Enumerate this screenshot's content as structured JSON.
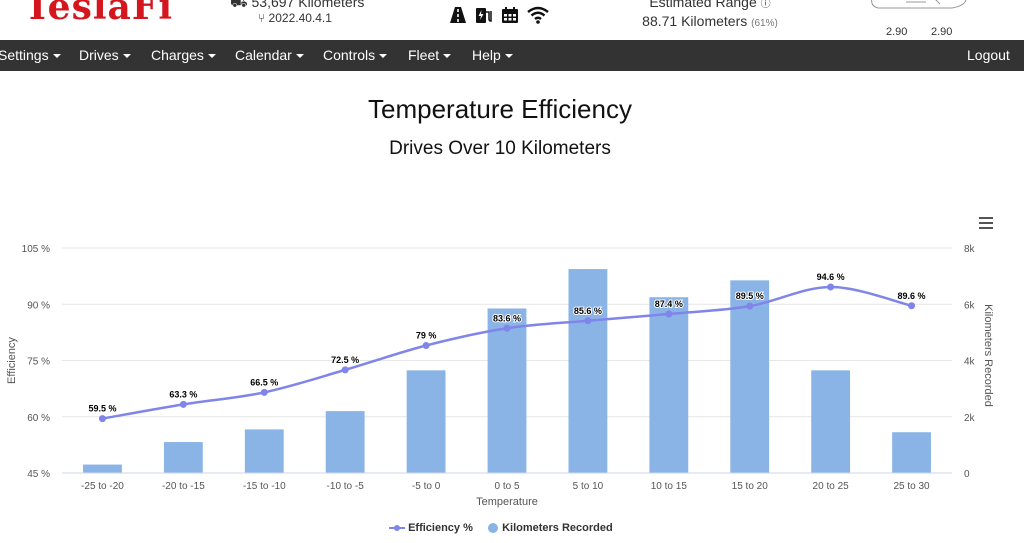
{
  "header": {
    "logo": "TeslaFi",
    "odometer": "53,697 Kilometers",
    "version": "2022.40.4.1",
    "range_label": "Estimated Range",
    "range_value": "88.71 Kilometers",
    "range_pct": "(61%)",
    "tire_left": "2.90",
    "tire_right": "2.90"
  },
  "nav": {
    "items": [
      {
        "label": "Settings"
      },
      {
        "label": "Drives"
      },
      {
        "label": "Charges"
      },
      {
        "label": "Calendar"
      },
      {
        "label": "Controls"
      },
      {
        "label": "Fleet"
      },
      {
        "label": "Help"
      }
    ],
    "logout": "Logout"
  },
  "chart_data": {
    "type": "bar+line",
    "title": "Temperature Efficiency",
    "subtitle": "Drives Over 10 Kilometers",
    "xlabel": "Temperature",
    "ylabel_left": "Efficiency",
    "ylabel_right": "Kilometers Recorded",
    "categories": [
      "-25 to -20",
      "-20 to -15",
      "-15 to -10",
      "-10 to -5",
      "-5 to 0",
      "0 to 5",
      "5 to 10",
      "10 to 15",
      "15 to 20",
      "20 to 25",
      "25 to 30"
    ],
    "series": [
      {
        "name": "Efficiency %",
        "type": "line",
        "axis": "left",
        "color": "#8085e9",
        "values": [
          59.5,
          63.3,
          66.5,
          72.5,
          79,
          83.6,
          85.6,
          87.4,
          89.5,
          94.6,
          89.6
        ],
        "labels": [
          "59.5 %",
          "63.3 %",
          "66.5 %",
          "72.5 %",
          "79 %",
          "83.6 %",
          "85.6 %",
          "87.4 %",
          "89.5 %",
          "94.6 %",
          "89.6 %"
        ]
      },
      {
        "name": "Kilometers Recorded",
        "type": "bar",
        "axis": "right",
        "color": "#8ab4e6",
        "values": [
          300,
          1100,
          1550,
          2200,
          3650,
          5850,
          7250,
          6250,
          6850,
          3650,
          1450
        ]
      }
    ],
    "ylim_left": [
      45,
      105
    ],
    "yticks_left": [
      "45 %",
      "60 %",
      "75 %",
      "90 %",
      "105 %"
    ],
    "ylim_right": [
      0,
      8000
    ],
    "yticks_right": [
      "0",
      "2k",
      "4k",
      "6k",
      "8k"
    ],
    "grid": true,
    "legend_position": "bottom-center"
  }
}
